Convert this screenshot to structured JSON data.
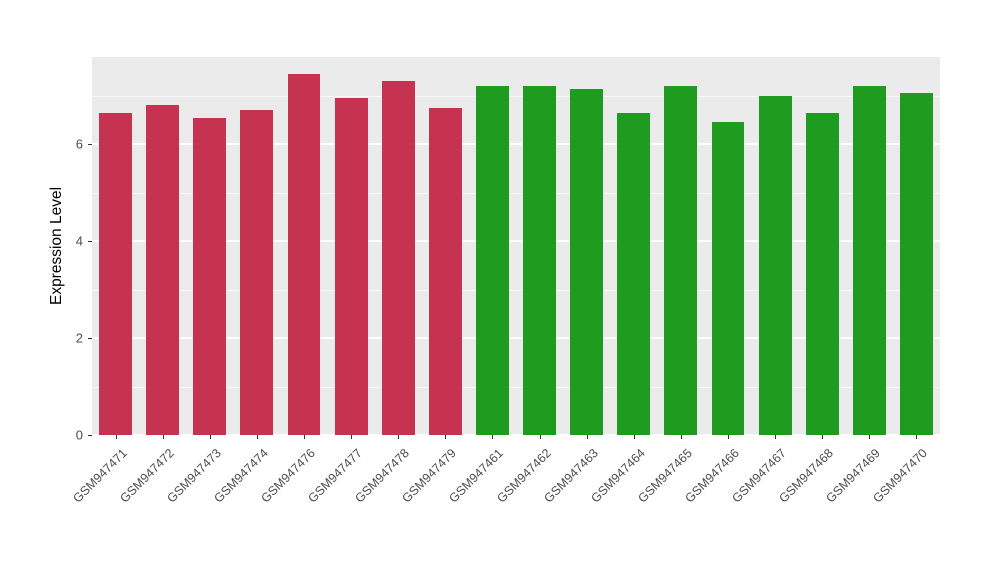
{
  "chart_data": {
    "type": "bar",
    "title": "",
    "xlabel": "",
    "ylabel": "Expression Level",
    "ylim": [
      0,
      7.8
    ],
    "yticks": [
      0,
      2,
      4,
      6
    ],
    "minor_gridlines": [
      1,
      3,
      5,
      7
    ],
    "grid": true,
    "legend_position": "none",
    "plot_background": "#EBEBEB",
    "grid_color": "#FFFFFF",
    "palette": {
      "red": "#C53350",
      "green": "#1F9B1F"
    },
    "bars": [
      {
        "label": "GSM947471",
        "value": 6.65,
        "group": "red"
      },
      {
        "label": "GSM947472",
        "value": 6.8,
        "group": "red"
      },
      {
        "label": "GSM947473",
        "value": 6.55,
        "group": "red"
      },
      {
        "label": "GSM947474",
        "value": 6.7,
        "group": "red"
      },
      {
        "label": "GSM947476",
        "value": 7.45,
        "group": "red"
      },
      {
        "label": "GSM947477",
        "value": 6.95,
        "group": "red"
      },
      {
        "label": "GSM947478",
        "value": 7.3,
        "group": "red"
      },
      {
        "label": "GSM947479",
        "value": 6.75,
        "group": "red"
      },
      {
        "label": "GSM947461",
        "value": 7.2,
        "group": "green"
      },
      {
        "label": "GSM947462",
        "value": 7.2,
        "group": "green"
      },
      {
        "label": "GSM947463",
        "value": 7.15,
        "group": "green"
      },
      {
        "label": "GSM947464",
        "value": 6.65,
        "group": "green"
      },
      {
        "label": "GSM947465",
        "value": 7.2,
        "group": "green"
      },
      {
        "label": "GSM947466",
        "value": 6.45,
        "group": "green"
      },
      {
        "label": "GSM947467",
        "value": 7.0,
        "group": "green"
      },
      {
        "label": "GSM947468",
        "value": 6.65,
        "group": "green"
      },
      {
        "label": "GSM947469",
        "value": 7.2,
        "group": "green"
      },
      {
        "label": "GSM947470",
        "value": 7.05,
        "group": "green"
      }
    ]
  }
}
